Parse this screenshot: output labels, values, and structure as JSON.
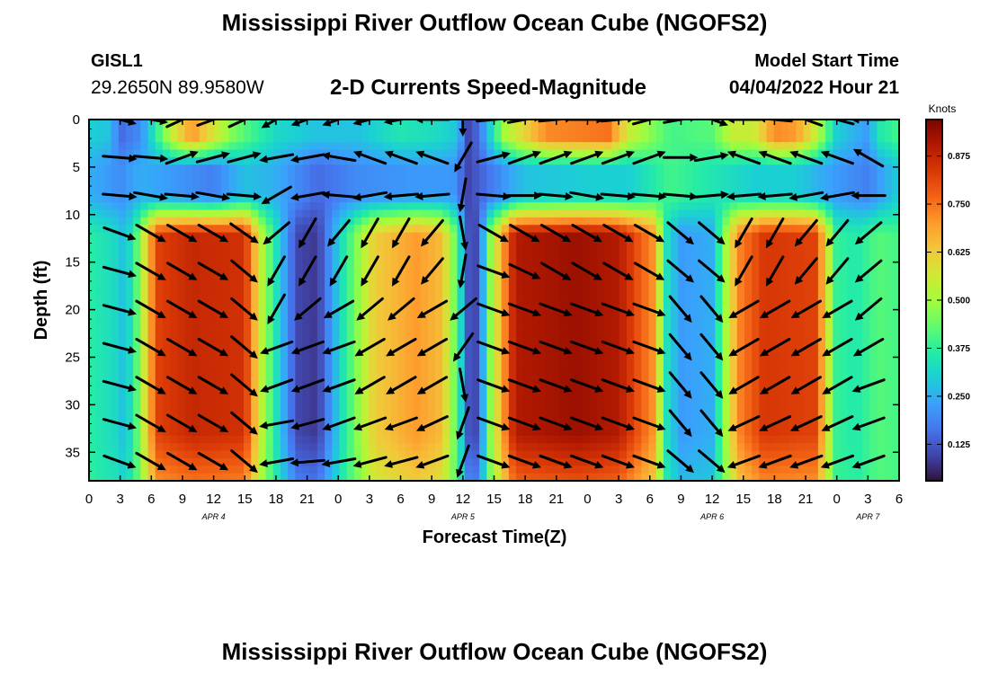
{
  "header": {
    "title": "Mississippi River Outflow Ocean Cube (NGOFS2)",
    "station_id": "GISL1",
    "station_coords": "29.2650N  89.9580W",
    "subtitle": "2-D Currents Speed-Magnitude",
    "model_start_label": "Model Start Time",
    "model_start_time": "04/04/2022 Hour 21"
  },
  "footer": {
    "repeat_title": "Mississippi River Outflow Ocean Cube (NGOFS2)"
  },
  "chart_data": {
    "type": "heatmap",
    "title": "2-D Currents Speed-Magnitude",
    "xlabel": "Forecast Time(Z)",
    "ylabel": "Depth (ft)",
    "x_units": "hours since 2022-04-04 00Z",
    "x_range": [
      0,
      78
    ],
    "x_tick_labels": [
      "0",
      "3",
      "6",
      "9",
      "12",
      "15",
      "18",
      "21",
      "0",
      "3",
      "6",
      "9",
      "12",
      "15",
      "18",
      "21",
      "0",
      "3",
      "6",
      "9",
      "12",
      "15",
      "18",
      "21",
      "0",
      "3",
      "6"
    ],
    "date_labels": [
      {
        "text": "APR 4",
        "hour": 12
      },
      {
        "text": "APR 5",
        "hour": 36
      },
      {
        "text": "APR 6",
        "hour": 60
      },
      {
        "text": "APR 7",
        "hour": 75
      }
    ],
    "y_range": [
      0,
      38
    ],
    "y_reversed": true,
    "y_ticks": [
      0,
      5,
      10,
      15,
      20,
      25,
      30,
      35
    ],
    "colorbar": {
      "label": "Knots",
      "range": [
        0.03,
        0.97
      ],
      "ticks": [
        "0.125",
        "0.250",
        "0.375",
        "0.500",
        "0.625",
        "0.750",
        "0.875"
      ],
      "tick_values": [
        0.125,
        0.25,
        0.375,
        0.5,
        0.625,
        0.75,
        0.875
      ],
      "colors": [
        "#30123b",
        "#4145ab",
        "#4675ed",
        "#39a2fc",
        "#1bcfd4",
        "#24eca6",
        "#61fc6c",
        "#a4fc3b",
        "#d1e834",
        "#f3c63a",
        "#fe9b2d",
        "#f36315",
        "#d93806",
        "#b11901",
        "#7a0402"
      ]
    },
    "speed_bands": {
      "bottom_hours": [
        0.0,
        2.5,
        3.5,
        4.5,
        5.5,
        6.5,
        10.0,
        15.0,
        16.5,
        18.5,
        20.0,
        22.0,
        24.5,
        27.5,
        31.5,
        34.0,
        35.5,
        36.5,
        37.5,
        38.5,
        41.0,
        47.0,
        51.0,
        54.5,
        55.5,
        57.0,
        60.0,
        62.5,
        65.0,
        70.0,
        72.0,
        74.0,
        76.0,
        78.0
      ],
      "bottom_speed": [
        0.37,
        0.32,
        0.27,
        0.4,
        0.6,
        0.82,
        0.87,
        0.85,
        0.55,
        0.28,
        0.1,
        0.08,
        0.35,
        0.62,
        0.7,
        0.65,
        0.4,
        0.12,
        0.1,
        0.45,
        0.9,
        0.93,
        0.9,
        0.7,
        0.35,
        0.22,
        0.25,
        0.72,
        0.84,
        0.82,
        0.38,
        0.36,
        0.42,
        0.4
      ],
      "surface_hours": [
        0,
        2,
        3,
        5,
        8,
        10,
        14,
        18,
        22,
        26,
        30,
        34,
        35.5,
        36.5,
        37.5,
        40,
        44,
        50,
        52,
        56,
        60,
        62,
        64,
        66,
        68,
        70,
        72,
        75,
        76,
        78
      ],
      "surface_speed": [
        0.3,
        0.28,
        0.15,
        0.2,
        0.55,
        0.7,
        0.45,
        0.32,
        0.28,
        0.28,
        0.35,
        0.32,
        0.28,
        0.1,
        0.15,
        0.5,
        0.72,
        0.75,
        0.55,
        0.4,
        0.42,
        0.55,
        0.55,
        0.72,
        0.7,
        0.55,
        0.3,
        0.22,
        0.35,
        0.4
      ],
      "mid_hours": [
        0,
        3,
        5,
        8,
        12,
        15,
        18,
        22,
        26,
        32,
        35,
        36.5,
        38,
        42,
        48,
        52,
        56,
        60,
        64,
        68,
        72,
        75,
        78
      ],
      "mid_speed": [
        0.25,
        0.2,
        0.25,
        0.22,
        0.18,
        0.28,
        0.25,
        0.15,
        0.2,
        0.22,
        0.22,
        0.1,
        0.15,
        0.28,
        0.3,
        0.3,
        0.4,
        0.35,
        0.3,
        0.3,
        0.22,
        0.18,
        0.3
      ]
    },
    "vector_hours": [
      3,
      6,
      9,
      12,
      15,
      18,
      21,
      24,
      27,
      30,
      33,
      36,
      39,
      42,
      45,
      48,
      51,
      54,
      57,
      60,
      63,
      66,
      69,
      72,
      75
    ],
    "vector_depths": [
      0,
      4,
      8,
      12,
      16,
      20,
      24,
      28,
      32,
      36
    ],
    "vector_direction_deg": [
      [
        -15,
        -10,
        25,
        20,
        25,
        -150,
        -160,
        200,
        -165,
        -170,
        180,
        -90,
        5,
        10,
        5,
        0,
        5,
        15,
        10,
        -20,
        180,
        175,
        160,
        165,
        180
      ],
      [
        -5,
        -5,
        20,
        15,
        15,
        -170,
        -170,
        170,
        160,
        160,
        160,
        240,
        15,
        20,
        20,
        20,
        20,
        20,
        0,
        10,
        160,
        160,
        160,
        160,
        150
      ],
      [
        -5,
        -10,
        -5,
        -10,
        -5,
        -150,
        -170,
        175,
        -170,
        -175,
        -175,
        -100,
        -5,
        0,
        -5,
        -10,
        -5,
        -5,
        -5,
        5,
        -175,
        -175,
        -170,
        -170,
        -180
      ],
      [
        -20,
        -30,
        -30,
        -30,
        -35,
        -140,
        -120,
        -130,
        -120,
        -120,
        -130,
        -80,
        -30,
        -30,
        -30,
        -30,
        -30,
        -30,
        -40,
        -40,
        -120,
        -120,
        -130,
        -130,
        -140
      ],
      [
        -15,
        -30,
        -30,
        -30,
        -40,
        -120,
        -120,
        -120,
        -120,
        -120,
        -130,
        -100,
        -20,
        -25,
        -30,
        -30,
        -30,
        -30,
        -40,
        -40,
        -120,
        -120,
        -130,
        -130,
        -140
      ],
      [
        -15,
        -30,
        -30,
        -30,
        -40,
        -120,
        -140,
        -150,
        -140,
        -140,
        -150,
        220,
        -20,
        -20,
        -20,
        -20,
        -20,
        -20,
        -50,
        -50,
        -150,
        -150,
        -150,
        -150,
        -140
      ],
      [
        -15,
        -30,
        -30,
        -30,
        -40,
        -160,
        -160,
        -160,
        -150,
        -150,
        -150,
        235,
        -20,
        -20,
        -20,
        -20,
        -20,
        -20,
        -50,
        -50,
        -150,
        -150,
        -150,
        -150,
        -150
      ],
      [
        -15,
        -30,
        -30,
        -30,
        -40,
        -160,
        -160,
        -160,
        -150,
        -150,
        -150,
        -80,
        -20,
        -20,
        -20,
        -20,
        -20,
        -20,
        -50,
        -50,
        -150,
        -150,
        -150,
        -150,
        -160
      ],
      [
        -15,
        -30,
        -30,
        -30,
        -40,
        -170,
        -165,
        -160,
        -160,
        -160,
        -155,
        250,
        -20,
        -20,
        -20,
        -20,
        -20,
        -20,
        -50,
        -50,
        -155,
        -155,
        -155,
        -155,
        -160
      ],
      [
        -20,
        -30,
        -30,
        -30,
        -40,
        -170,
        -175,
        -170,
        -165,
        -165,
        -160,
        250,
        -20,
        -20,
        -20,
        -20,
        -20,
        -20,
        -40,
        -40,
        -160,
        -160,
        -160,
        -160,
        -160
      ]
    ]
  }
}
